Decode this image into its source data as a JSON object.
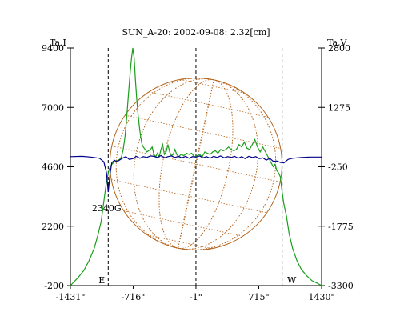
{
  "chart_data": {
    "type": "line",
    "title": "SUN_A-20: 2002-09-08: 2.32[cm]",
    "left_axis": {
      "label": "Ta,I",
      "ticks": [
        9400,
        7000,
        4600,
        2200,
        -200
      ],
      "tick_labels": [
        "9400",
        "7000",
        "4600",
        "2200",
        "-200"
      ],
      "ylim": [
        -200,
        9400
      ]
    },
    "right_axis": {
      "label": "Ta,V",
      "ticks": [
        2800,
        1275,
        -250,
        -1775,
        -3300
      ],
      "tick_labels": [
        "2800",
        "1275",
        "-250",
        "-1775",
        "-3300"
      ],
      "ylim": [
        -3300,
        2800
      ]
    },
    "x_axis": {
      "ticks": [
        -1431,
        -716,
        -1,
        715,
        1430
      ],
      "tick_labels": [
        "-1431\"",
        "-716\"",
        "-1\"",
        "715\"",
        "1430\""
      ],
      "xlim": [
        -1431,
        1430
      ]
    },
    "limb_markers": [
      {
        "x": -1000,
        "label": "E"
      },
      {
        "x": -1,
        "label": ""
      },
      {
        "x": 980,
        "label": "W"
      }
    ],
    "annotations": [
      {
        "text": "2340G",
        "x": -1000,
        "y_right": -900
      }
    ],
    "solar_disk": {
      "center_x": -1,
      "radius_arcsec": 980,
      "color": "#b5651d"
    },
    "series": [
      {
        "name": "",
        "axis": "left",
        "color": "#1a9e1a",
        "x": [
          -1431,
          -1350,
          -1280,
          -1220,
          -1160,
          -1120,
          -1080,
          -1050,
          -1020,
          -990,
          -960,
          -930,
          -900,
          -870,
          -850,
          -830,
          -810,
          -790,
          -770,
          -750,
          -735,
          -720,
          -705,
          -690,
          -675,
          -660,
          -645,
          -630,
          -615,
          -600,
          -580,
          -560,
          -540,
          -520,
          -500,
          -480,
          -460,
          -440,
          -420,
          -400,
          -380,
          -360,
          -340,
          -320,
          -300,
          -280,
          -260,
          -240,
          -220,
          -200,
          -170,
          -140,
          -110,
          -80,
          -50,
          -20,
          10,
          40,
          70,
          100,
          130,
          160,
          190,
          220,
          250,
          280,
          310,
          340,
          370,
          400,
          430,
          460,
          490,
          520,
          550,
          580,
          610,
          640,
          670,
          700,
          730,
          760,
          790,
          820,
          850,
          880,
          900,
          920,
          940,
          960,
          980,
          1000,
          1030,
          1060,
          1100,
          1150,
          1200,
          1260,
          1320,
          1380,
          1430
        ],
        "y": [
          -200,
          100,
          400,
          800,
          1300,
          1800,
          2400,
          3200,
          4000,
          4500,
          4700,
          4800,
          4850,
          4900,
          5000,
          5300,
          5800,
          6600,
          7500,
          8400,
          9000,
          9400,
          9000,
          8100,
          7300,
          6700,
          6200,
          5800,
          5500,
          5400,
          5300,
          5200,
          5250,
          5300,
          5400,
          5100,
          5000,
          5150,
          5000,
          5300,
          5500,
          5100,
          5200,
          5500,
          5200,
          5050,
          5100,
          5300,
          5100,
          5000,
          5100,
          5050,
          5150,
          5100,
          5150,
          5000,
          5050,
          5100,
          5000,
          5200,
          5150,
          5100,
          5200,
          5250,
          5150,
          5300,
          5250,
          5300,
          5400,
          5300,
          5250,
          5300,
          5500,
          5400,
          5600,
          5350,
          5300,
          5500,
          5700,
          5400,
          5200,
          5400,
          5200,
          5000,
          4800,
          4600,
          4700,
          4450,
          4350,
          4200,
          3600,
          3100,
          2600,
          1900,
          1300,
          800,
          450,
          200,
          0,
          -100,
          -200
        ]
      },
      {
        "name": "",
        "axis": "right",
        "color": "#00008b",
        "x": [
          -1431,
          -1300,
          -1200,
          -1100,
          -1050,
          -1020,
          -1000,
          -980,
          -960,
          -930,
          -900,
          -860,
          -830,
          -800,
          -760,
          -720,
          -680,
          -640,
          -600,
          -560,
          -520,
          -480,
          -440,
          -400,
          -360,
          -320,
          -280,
          -240,
          -200,
          -160,
          -120,
          -80,
          -40,
          0,
          40,
          80,
          120,
          160,
          200,
          240,
          280,
          320,
          360,
          400,
          440,
          480,
          520,
          560,
          600,
          640,
          680,
          720,
          760,
          800,
          840,
          880,
          920,
          960,
          1000,
          1050,
          1100,
          1200,
          1300,
          1430
        ],
        "y": [
          10,
          20,
          0,
          -30,
          -120,
          -400,
          -900,
          -450,
          -150,
          -80,
          -120,
          -60,
          -20,
          10,
          -60,
          -40,
          20,
          -30,
          10,
          -10,
          30,
          20,
          -10,
          40,
          -20,
          10,
          30,
          -10,
          20,
          -20,
          20,
          -30,
          10,
          0,
          30,
          -20,
          10,
          -30,
          20,
          -10,
          30,
          -20,
          10,
          -10,
          20,
          -30,
          10,
          -40,
          20,
          -10,
          10,
          -40,
          -20,
          -80,
          -30,
          -110,
          -100,
          -140,
          -150,
          -60,
          -30,
          -10,
          0,
          0
        ]
      }
    ]
  }
}
